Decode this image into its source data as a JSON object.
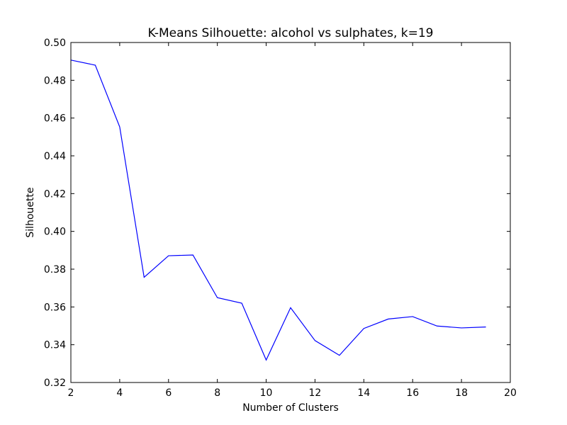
{
  "chart_data": {
    "type": "line",
    "title": "K-Means Silhouette: alcohol vs sulphates, k=19",
    "xlabel": "Number of Clusters",
    "ylabel": "Silhouette",
    "xlim": [
      2,
      20
    ],
    "ylim": [
      0.32,
      0.5
    ],
    "xticks": [
      2,
      4,
      6,
      8,
      10,
      12,
      14,
      16,
      18,
      20
    ],
    "yticks": [
      "0.32",
      "0.34",
      "0.36",
      "0.38",
      "0.40",
      "0.42",
      "0.44",
      "0.46",
      "0.48",
      "0.50"
    ],
    "grid": false,
    "series": [
      {
        "color": "#0000ff",
        "x": [
          2,
          3,
          4,
          5,
          6,
          7,
          8,
          9,
          10,
          11,
          12,
          13,
          14,
          15,
          16,
          17,
          18,
          19
        ],
        "values": [
          0.4907,
          0.488,
          0.4553,
          0.3757,
          0.3871,
          0.3875,
          0.3649,
          0.362,
          0.3319,
          0.3596,
          0.3422,
          0.3344,
          0.3486,
          0.3536,
          0.3549,
          0.3499,
          0.3489,
          0.3494
        ]
      }
    ]
  }
}
